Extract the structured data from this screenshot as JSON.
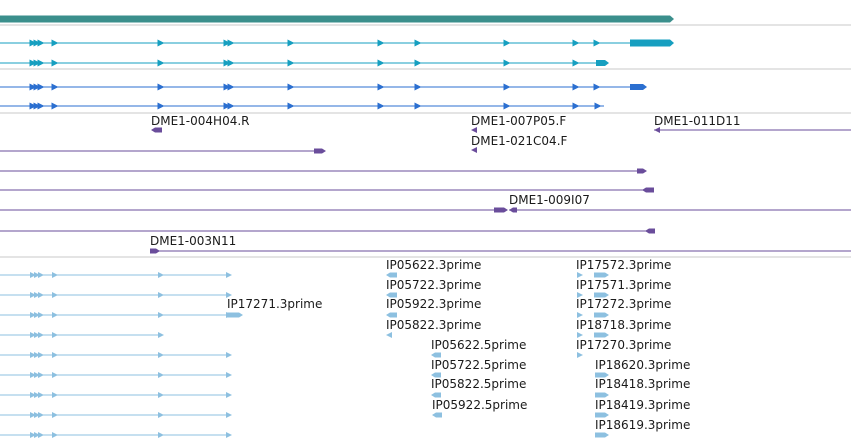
{
  "colors": {
    "gene_top": "#3b8f8c",
    "transcript_cyan": "#169fc0",
    "transcript_blue": "#2b6fd0",
    "clone_purple": "#6a4d9b",
    "est_light": "#8dc0e0",
    "divider": "#c8c8c8"
  },
  "clone_labels": [
    "DME1-004H04.R",
    "DME1-007P05.F",
    "DME1-021C04.F",
    "DME1-011D11",
    "DME1-009I07",
    "DME1-003N11"
  ],
  "est_labels": [
    "IP05622.3prime",
    "IP05722.3prime",
    "IP05922.3prime",
    "IP05822.3prime",
    "IP05622.5prime",
    "IP05722.5prime",
    "IP05822.5prime",
    "IP05922.5prime",
    "IP17572.3prime",
    "IP17571.3prime",
    "IP17272.3prime",
    "IP18718.3prime",
    "IP17270.3prime",
    "IP18620.3prime",
    "IP18418.3prime",
    "IP18419.3prime",
    "IP18619.3prime",
    "IP17271.3prime"
  ]
}
